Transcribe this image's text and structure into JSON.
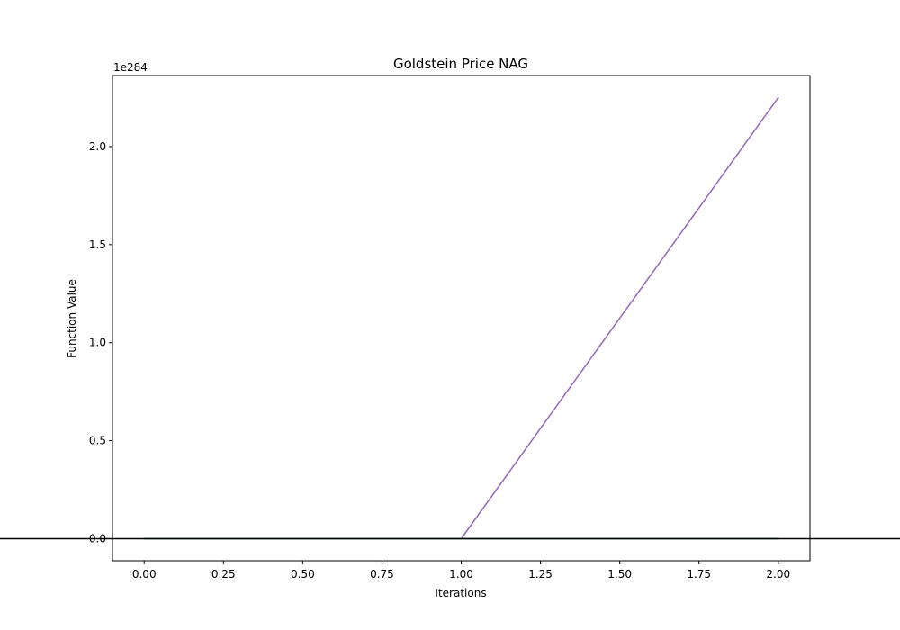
{
  "chart_data": {
    "type": "line",
    "title": "Goldstein Price NAG",
    "xlabel": "Iterations",
    "ylabel": "Function Value",
    "y_offset_text": "1e284",
    "xlim": [
      -0.1,
      2.1
    ],
    "ylim": [
      -0.1125,
      2.3625
    ],
    "x_ticks": [
      0.0,
      0.25,
      0.5,
      0.75,
      1.0,
      1.25,
      1.5,
      1.75,
      2.0
    ],
    "x_tick_labels": [
      "0.00",
      "0.25",
      "0.50",
      "0.75",
      "1.00",
      "1.25",
      "1.50",
      "1.75",
      "2.00"
    ],
    "y_ticks": [
      0.0,
      0.5,
      1.0,
      1.5,
      2.0
    ],
    "y_tick_labels": [
      "0.0",
      "0.5",
      "1.0",
      "1.5",
      "2.0"
    ],
    "y_unit_multiplier": "1e284",
    "hline": 0,
    "hline_color": "#000000",
    "grid": false,
    "legend": "none",
    "series": [
      {
        "x": [
          0,
          1,
          2
        ],
        "values": [
          0,
          0,
          0
        ],
        "color": "#1f77b4"
      },
      {
        "x": [
          0,
          1,
          2
        ],
        "values": [
          0,
          0,
          0
        ],
        "color": "#ff7f0e"
      },
      {
        "x": [
          0,
          1,
          2
        ],
        "values": [
          0,
          0,
          0
        ],
        "color": "#2ca02c"
      },
      {
        "x": [
          0,
          1,
          2
        ],
        "values": [
          0,
          0,
          0
        ],
        "color": "#d62728"
      },
      {
        "x": [
          0,
          1,
          2
        ],
        "values": [
          0,
          0,
          2.25
        ],
        "color": "#9467bd"
      },
      {
        "x": [
          0,
          1,
          2
        ],
        "values": [
          0,
          0,
          0
        ],
        "color": "#8c564b"
      },
      {
        "x": [
          0,
          1,
          2
        ],
        "values": [
          0,
          0,
          0
        ],
        "color": "#e377c2"
      },
      {
        "x": [
          0,
          1,
          2
        ],
        "values": [
          0,
          0,
          0
        ],
        "color": "#7f7f7f"
      },
      {
        "x": [
          0,
          1,
          2
        ],
        "values": [
          0,
          0,
          0
        ],
        "color": "#bcbd22"
      },
      {
        "x": [
          0,
          1,
          2
        ],
        "values": [
          0,
          0,
          0
        ],
        "color": "#17becf"
      }
    ]
  }
}
